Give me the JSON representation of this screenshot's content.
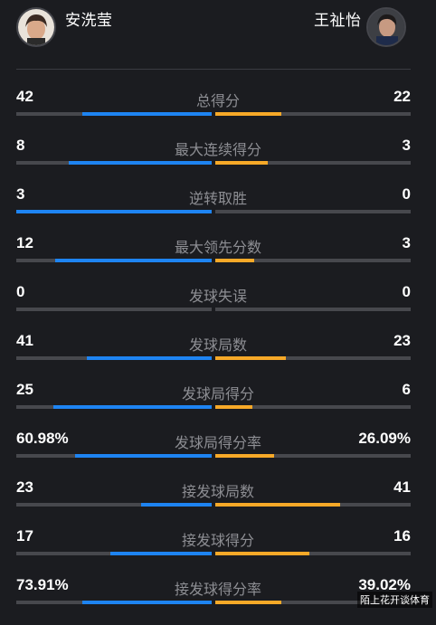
{
  "players": {
    "left": {
      "name": "安洗莹"
    },
    "right": {
      "name": "王祉怡"
    }
  },
  "colors": {
    "left_bar": "#1e84f2",
    "right_bar": "#f7a928",
    "track": "#47484d",
    "background": "#1b1c20"
  },
  "stats": [
    {
      "label": "总得分",
      "left": "42",
      "right": "22",
      "left_share": 0.66,
      "right_share": 0.34
    },
    {
      "label": "最大连续得分",
      "left": "8",
      "right": "3",
      "left_share": 0.73,
      "right_share": 0.27
    },
    {
      "label": "逆转取胜",
      "left": "3",
      "right": "0",
      "left_share": 1.0,
      "right_share": 0.0
    },
    {
      "label": "最大领先分数",
      "left": "12",
      "right": "3",
      "left_share": 0.8,
      "right_share": 0.2
    },
    {
      "label": "发球失误",
      "left": "0",
      "right": "0",
      "left_share": 0.0,
      "right_share": 0.0
    },
    {
      "label": "发球局数",
      "left": "41",
      "right": "23",
      "left_share": 0.64,
      "right_share": 0.36
    },
    {
      "label": "发球局得分",
      "left": "25",
      "right": "6",
      "left_share": 0.81,
      "right_share": 0.19
    },
    {
      "label": "发球局得分率",
      "left": "60.98%",
      "right": "26.09%",
      "left_share": 0.7,
      "right_share": 0.3
    },
    {
      "label": "接发球局数",
      "left": "23",
      "right": "41",
      "left_share": 0.36,
      "right_share": 0.64
    },
    {
      "label": "接发球得分",
      "left": "17",
      "right": "16",
      "left_share": 0.52,
      "right_share": 0.48
    },
    {
      "label": "接发球得分率",
      "left": "73.91%",
      "right": "39.02%",
      "left_share": 0.66,
      "right_share": 0.34
    }
  ],
  "watermark": "陌上花开谈体育"
}
